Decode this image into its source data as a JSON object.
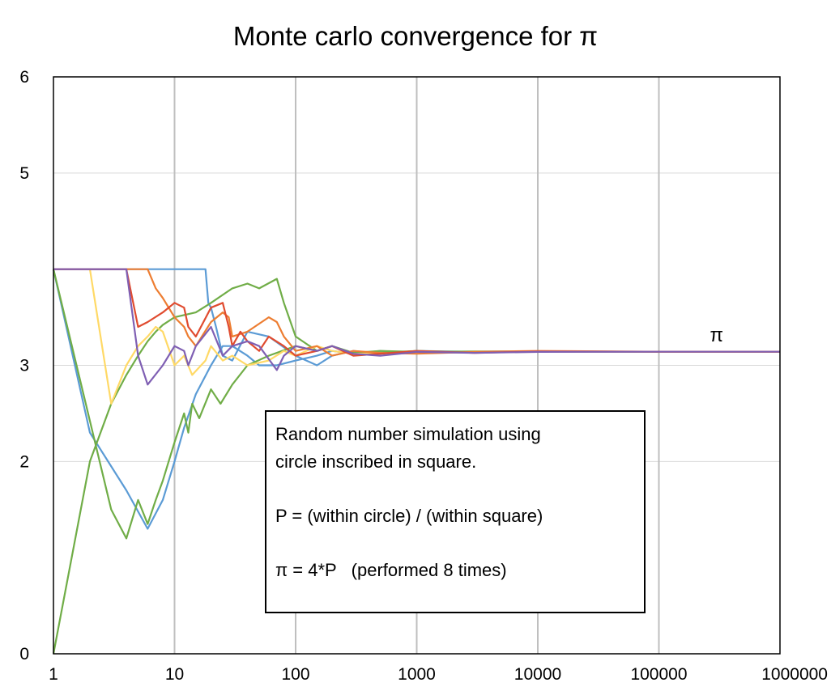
{
  "chart_data": {
    "type": "line",
    "title": "Monte carlo convergence for π",
    "xlabel": "",
    "ylabel": "",
    "xscale": "log",
    "xlim": [
      1,
      1000000
    ],
    "ylim": [
      0,
      6
    ],
    "grid": "both",
    "legend": "none",
    "x_ticks": [
      "1",
      "10",
      "100",
      "1000",
      "10000",
      "100000",
      "1000000"
    ],
    "y_ticks": [
      "0",
      "2",
      "3",
      "5",
      "6"
    ],
    "y_tick_values": [
      0,
      2,
      3,
      5,
      6
    ],
    "annotation_pi": {
      "text": "π",
      "x": 300000,
      "y": 3.25
    },
    "note_box": {
      "lines": [
        "Random number simulation using",
        "circle inscribed in square.",
        "",
        "P = (within circle) / (within square)",
        "",
        "π = 4*P   (performed 8 times)"
      ]
    },
    "series": [
      {
        "color": "#5b9bd5",
        "x": [
          1,
          18,
          19,
          20,
          22,
          25,
          30,
          40,
          60,
          100,
          150,
          200,
          300,
          500,
          1000,
          3000,
          10000,
          100000,
          1000000
        ],
        "y": [
          4.0,
          4.0,
          3.65,
          3.6,
          3.4,
          3.1,
          3.05,
          3.35,
          3.3,
          3.1,
          3.0,
          3.1,
          3.15,
          3.12,
          3.15,
          3.14,
          3.145,
          3.141,
          3.1416
        ]
      },
      {
        "color": "#5b9bd5",
        "x": [
          1,
          2,
          4,
          6,
          8,
          10,
          12,
          15,
          20,
          25,
          30,
          40,
          50,
          70,
          100,
          150,
          200,
          300,
          500,
          1000,
          2000,
          5000,
          10000,
          100000,
          1000000
        ],
        "y": [
          4.0,
          2.3,
          1.7,
          1.3,
          1.6,
          2.0,
          2.35,
          2.7,
          3.0,
          3.2,
          3.2,
          3.1,
          3.0,
          3.0,
          3.05,
          3.1,
          3.15,
          3.12,
          3.15,
          3.13,
          3.14,
          3.145,
          3.142,
          3.141,
          3.1416
        ]
      },
      {
        "color": "#70ad47",
        "x": [
          1,
          2,
          3,
          4,
          5,
          6,
          7,
          8,
          10,
          15,
          20,
          30,
          40,
          50,
          70,
          80,
          100,
          150,
          200,
          300,
          500,
          1000,
          2000,
          10000,
          100000,
          1000000
        ],
        "y": [
          0,
          2.0,
          2.6,
          2.9,
          3.1,
          3.25,
          3.35,
          3.42,
          3.5,
          3.55,
          3.65,
          3.8,
          3.85,
          3.8,
          3.9,
          3.65,
          3.3,
          3.15,
          3.2,
          3.12,
          3.13,
          3.15,
          3.14,
          3.142,
          3.141,
          3.1416
        ]
      },
      {
        "color": "#70ad47",
        "x": [
          1,
          3,
          4,
          5,
          6,
          7,
          8,
          10,
          12,
          13,
          14,
          16,
          20,
          24,
          30,
          40,
          60,
          100,
          150,
          200,
          300,
          500,
          1000,
          3000,
          10000,
          100000,
          1000000
        ],
        "y": [
          4.0,
          1.5,
          1.2,
          1.6,
          1.35,
          1.6,
          1.8,
          2.2,
          2.5,
          2.3,
          2.6,
          2.45,
          2.75,
          2.6,
          2.8,
          3.0,
          3.1,
          3.2,
          3.15,
          3.2,
          3.13,
          3.15,
          3.14,
          3.145,
          3.142,
          3.141,
          3.1416
        ]
      },
      {
        "color": "#ffd966",
        "x": [
          1,
          2,
          3,
          4,
          5,
          6,
          7,
          8,
          10,
          12,
          14,
          18,
          20,
          25,
          30,
          40,
          60,
          80,
          100,
          150,
          200,
          300,
          1000,
          10000,
          100000,
          1000000
        ],
        "y": [
          4.0,
          4.0,
          2.6,
          3.0,
          3.2,
          3.3,
          3.4,
          3.35,
          3.0,
          3.1,
          2.9,
          3.05,
          3.2,
          3.05,
          3.1,
          3.0,
          3.05,
          3.15,
          3.1,
          3.2,
          3.15,
          3.12,
          3.13,
          3.14,
          3.141,
          3.1416
        ]
      },
      {
        "color": "#ed7d31",
        "x": [
          1,
          6,
          7,
          8,
          10,
          12,
          13,
          15,
          20,
          25,
          28,
          30,
          40,
          60,
          70,
          80,
          100,
          150,
          200,
          300,
          500,
          1000,
          3000,
          10000,
          100000,
          1000000
        ],
        "y": [
          4.0,
          4.0,
          3.8,
          3.7,
          3.5,
          3.4,
          3.3,
          3.2,
          3.45,
          3.55,
          3.5,
          3.3,
          3.35,
          3.5,
          3.45,
          3.3,
          3.15,
          3.2,
          3.1,
          3.15,
          3.13,
          3.12,
          3.14,
          3.15,
          3.141,
          3.1416
        ]
      },
      {
        "color": "#e04b2f",
        "x": [
          1,
          4,
          5,
          6,
          8,
          10,
          12,
          13,
          15,
          20,
          25,
          28,
          30,
          35,
          40,
          50,
          60,
          80,
          100,
          150,
          200,
          300,
          500,
          1000,
          3000,
          10000,
          100000,
          1000000
        ],
        "y": [
          4.0,
          4.0,
          3.4,
          3.45,
          3.55,
          3.65,
          3.6,
          3.4,
          3.3,
          3.6,
          3.65,
          3.4,
          3.2,
          3.35,
          3.25,
          3.15,
          3.3,
          3.2,
          3.1,
          3.15,
          3.2,
          3.1,
          3.12,
          3.15,
          3.13,
          3.145,
          3.141,
          3.1416
        ]
      },
      {
        "color": "#7f5fb3",
        "x": [
          1,
          4,
          5,
          6,
          8,
          10,
          12,
          13,
          15,
          20,
          25,
          30,
          40,
          50,
          70,
          80,
          100,
          150,
          200,
          300,
          500,
          1000,
          3000,
          10000,
          100000,
          1000000
        ],
        "y": [
          4.0,
          4.0,
          3.1,
          2.8,
          3.0,
          3.2,
          3.15,
          3.0,
          3.2,
          3.4,
          3.1,
          3.2,
          3.25,
          3.2,
          2.95,
          3.1,
          3.2,
          3.15,
          3.2,
          3.12,
          3.1,
          3.14,
          3.13,
          3.14,
          3.141,
          3.1416
        ]
      }
    ]
  }
}
